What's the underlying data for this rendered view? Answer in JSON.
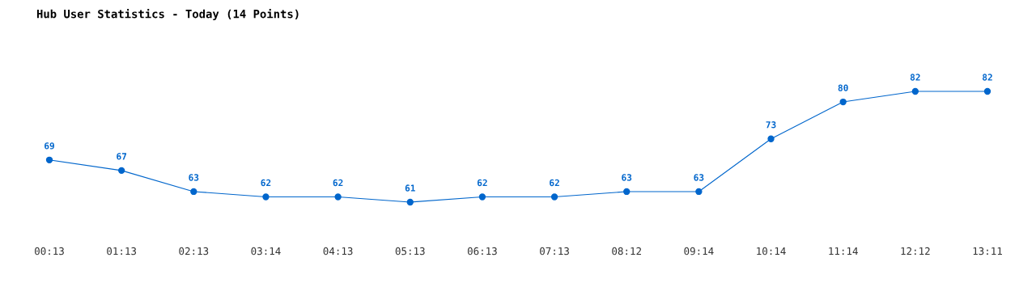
{
  "chart_data": {
    "type": "line",
    "title": "Hub User Statistics - Today (14 Points)",
    "categories": [
      "00:13",
      "01:13",
      "02:13",
      "03:14",
      "04:13",
      "05:13",
      "06:13",
      "07:13",
      "08:12",
      "09:14",
      "10:14",
      "11:14",
      "12:12",
      "13:11"
    ],
    "series": [
      {
        "color": "#0066cc",
        "values": [
          69,
          67,
          63,
          62,
          62,
          61,
          62,
          62,
          63,
          63,
          73,
          80,
          82,
          82
        ]
      }
    ],
    "data_labels": true,
    "marker": "circle",
    "grid": false,
    "legend": false
  }
}
